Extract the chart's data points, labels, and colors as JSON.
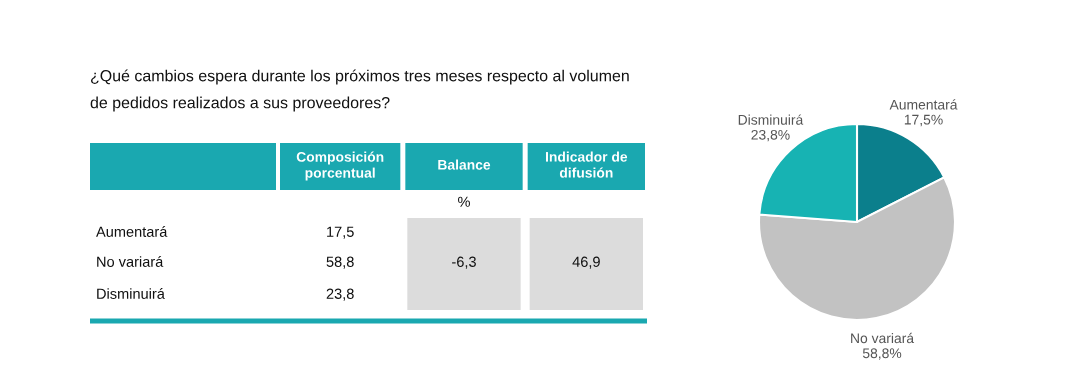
{
  "chart_data": [
    {
      "type": "other",
      "title": "¿Qué cambios espera durante los próximos tres meses respecto al volumen de pedidos realizados a sus proveedores?",
      "annotations": [
        "Composición porcentual",
        "Balance",
        "Indicador de difusión",
        "%",
        "Aumentará",
        "No variará",
        "Disminuirá",
        "17,5",
        "58,8",
        "23,8",
        "-6,3",
        "46,9"
      ]
    },
    {
      "type": "pie",
      "categories": [
        "Aumentará",
        "No variará",
        "Disminuirá"
      ],
      "values": [
        17.5,
        58.8,
        23.8
      ],
      "colors": [
        "#0b7f8c",
        "#c2c2c2",
        "#17b3b3"
      ],
      "value_labels": [
        "17,5%",
        "58,8%",
        "23,8%"
      ]
    }
  ]
}
